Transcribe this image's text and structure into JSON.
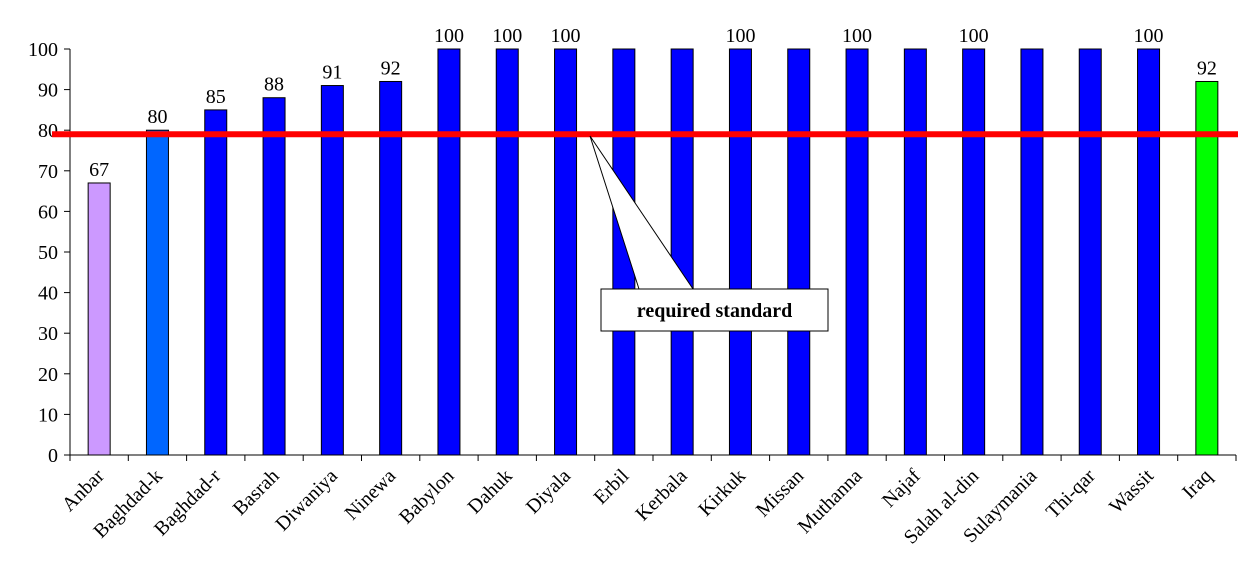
{
  "chart_data": {
    "type": "bar",
    "categories": [
      "Anbar",
      "Baghdad-k",
      "Baghdad-r",
      "Basrah",
      "Diwaniya",
      "Ninewa",
      "Babylon",
      "Dahuk",
      "Diyala",
      "Erbil",
      "Kerbala",
      "Kirkuk",
      "Missan",
      "Muthanna",
      "Najaf",
      "Salah al-din",
      "Sulaymania",
      "Thi-qar",
      "Wassit",
      "Iraq"
    ],
    "values": [
      67,
      80,
      85,
      88,
      91,
      92,
      100,
      100,
      100,
      100,
      100,
      100,
      100,
      100,
      100,
      100,
      100,
      100,
      100,
      92
    ],
    "data_labels": [
      "67",
      "80",
      "85",
      "88",
      "91",
      "92",
      "100",
      "100",
      "100",
      "",
      "",
      "100",
      "",
      "100",
      "",
      "100",
      "",
      "",
      "100",
      "92"
    ],
    "bar_colors": [
      "#cc99ff",
      "#0066ff",
      "#0000ff",
      "#0000ff",
      "#0000ff",
      "#0000ff",
      "#0000ff",
      "#0000ff",
      "#0000ff",
      "#0000ff",
      "#0000ff",
      "#0000ff",
      "#0000ff",
      "#0000ff",
      "#0000ff",
      "#0000ff",
      "#0000ff",
      "#0000ff",
      "#0000ff",
      "#00ff00"
    ],
    "ylim": [
      0,
      100
    ],
    "yticks": [
      0,
      10,
      20,
      30,
      40,
      50,
      60,
      70,
      80,
      90,
      100
    ],
    "grid": false,
    "reference_line": {
      "value": 79,
      "color": "#ff0000"
    },
    "annotation": "required standard"
  }
}
